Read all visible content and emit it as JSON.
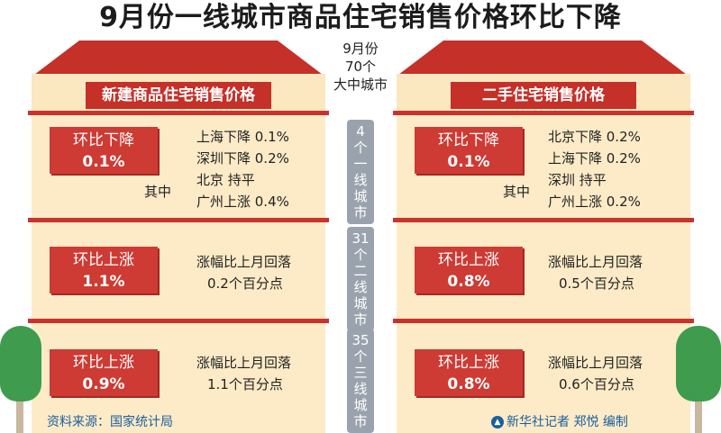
{
  "title": "9月份一线城市商品住宅销售价格环比下降",
  "center": {
    "top_lines": [
      "9月份",
      "70个",
      "大中城市"
    ],
    "tier1": [
      "4",
      "个",
      "一",
      "线",
      "城",
      "市"
    ],
    "tier2": [
      "31",
      "个",
      "二",
      "线",
      "城",
      "市"
    ],
    "tier3": [
      "35",
      "个",
      "三",
      "线",
      "城",
      "市"
    ]
  },
  "left": {
    "heading": "新建商品住宅销售价格",
    "row1": {
      "label": "环比下降",
      "value": "0.1%",
      "qizhong": "其中",
      "details": [
        "上海下降 0.1%",
        "深圳下降 0.2%",
        "北京 持平",
        "广州上涨 0.4%"
      ]
    },
    "row2": {
      "label": "环比上涨",
      "value": "1.1%",
      "note1": "涨幅比上月回落",
      "note2": "0.2个百分点"
    },
    "row3": {
      "label": "环比上涨",
      "value": "0.9%",
      "note1": "涨幅比上月回落",
      "note2": "1.1个百分点"
    }
  },
  "right": {
    "heading": "二手住宅销售价格",
    "row1": {
      "label": "环比下降",
      "value": "0.1%",
      "qizhong": "其中",
      "details": [
        "北京下降 0.2%",
        "上海下降 0.2%",
        "深圳 持平",
        "广州上涨 0.2%"
      ]
    },
    "row2": {
      "label": "环比上涨",
      "value": "0.8%",
      "note1": "涨幅比上月回落",
      "note2": "0.5个百分点"
    },
    "row3": {
      "label": "环比上涨",
      "value": "0.8%",
      "note1": "涨幅比上月回落",
      "note2": "0.6个百分点"
    }
  },
  "footer": {
    "source": "资料来源：国家统计局",
    "credit": "新华社记者 郑悦 编制"
  },
  "colors": {
    "roof": "#c53029",
    "wall": "#fdebc7",
    "box": "#cd3b34",
    "pill": "#9aa3ad",
    "tree": "#3f9b4e"
  }
}
